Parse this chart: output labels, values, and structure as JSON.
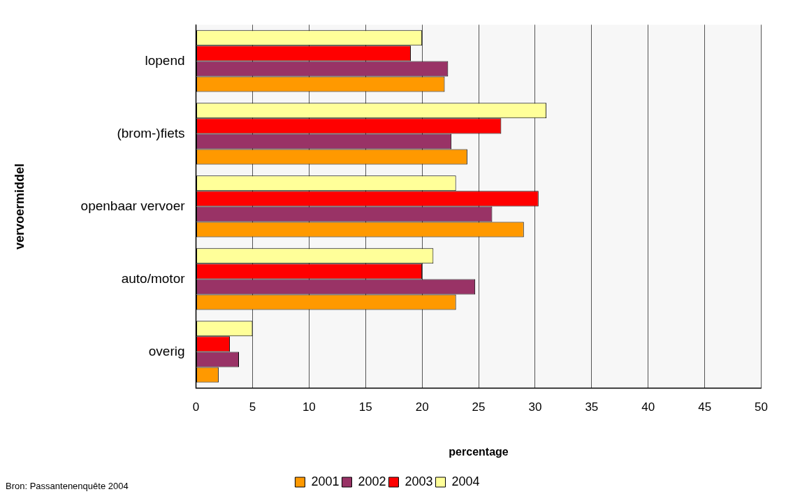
{
  "chart_data": {
    "type": "bar",
    "orientation": "horizontal",
    "categories": [
      "lopend",
      "(brom-)fiets",
      "openbaar vervoer",
      "auto/motor",
      "overig"
    ],
    "series": [
      {
        "name": "2001",
        "color": "#ff9900",
        "values": [
          22,
          24,
          29,
          23,
          2
        ]
      },
      {
        "name": "2002",
        "color": "#993366",
        "values": [
          22.3,
          22.6,
          26.2,
          24.7,
          3.8
        ]
      },
      {
        "name": "2003",
        "color": "#ff0000",
        "values": [
          19,
          27,
          30.3,
          20,
          3
        ]
      },
      {
        "name": "2004",
        "color": "#ffff99",
        "values": [
          20,
          31,
          23,
          21,
          5
        ]
      }
    ],
    "xlim": [
      0,
      50
    ],
    "xticks": [
      0,
      5,
      10,
      15,
      20,
      25,
      30,
      35,
      40,
      45,
      50
    ],
    "xlabel": "percentage",
    "ylabel": "vervoermiddel",
    "grid": "x",
    "legend": "bottom",
    "annotations": [
      "Bron: Passantenenquête 2004"
    ]
  }
}
